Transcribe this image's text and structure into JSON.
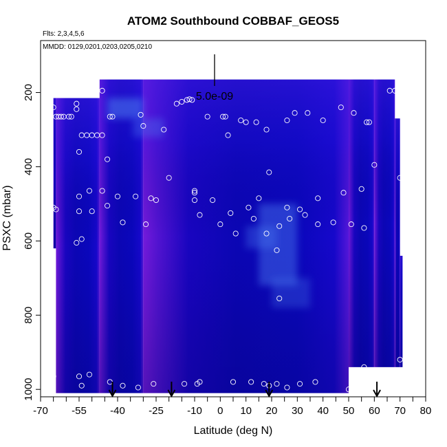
{
  "chart_data": {
    "type": "heatmap",
    "title": "ATOM2 Southbound COBBAF_GEOS5",
    "flights_note": "Flts: 2,3,4,5,6",
    "dates_note": "MMDD: 0129,0201,0203,0205,0210",
    "scale_label": "5.0e-09",
    "xlabel": "Latitude (deg N)",
    "ylabel": "PSXC (mbar)",
    "xlim": [
      -70,
      80
    ],
    "ylim": [
      1020,
      60
    ],
    "y_reversed": true,
    "x_tick_labels": [
      "-70",
      "-55",
      "-40",
      "-25",
      "-10",
      "0",
      "10",
      "20",
      "30",
      "40",
      "50",
      "60",
      "70",
      "80"
    ],
    "x_tick_values": [
      -70,
      -55,
      -40,
      -25,
      -10,
      0,
      10,
      20,
      30,
      40,
      50,
      60,
      70,
      80
    ],
    "x_minor_ticks": [
      -65,
      -60,
      -50,
      -45,
      -35,
      -30,
      -20,
      -15,
      -5,
      5,
      15,
      25,
      35,
      45,
      55,
      65,
      75
    ],
    "y_tick_labels": [
      "200",
      "400",
      "600",
      "800",
      "1000"
    ],
    "y_tick_values": [
      200,
      400,
      600,
      800,
      1000
    ],
    "colors": {
      "low": "#7a1ce0",
      "mid": "#1200c0",
      "high": "#4a7cf0",
      "marker": "#ffffff"
    },
    "columns": [
      {
        "x0": -65,
        "x1": -64,
        "top": 215,
        "bottom": 620
      },
      {
        "x0": -64,
        "x1": -47,
        "top": 215,
        "bottom": 1010
      },
      {
        "x0": -47,
        "x1": -30,
        "top": 165,
        "bottom": 1010
      },
      {
        "x0": -30,
        "x1": 50,
        "top": 165,
        "bottom": 1010
      },
      {
        "x0": 50,
        "x1": 60,
        "top": 165,
        "bottom": 940
      },
      {
        "x0": 60,
        "x1": 68,
        "top": 165,
        "bottom": 940
      },
      {
        "x0": 68,
        "x1": 70,
        "top": 270,
        "bottom": 940
      },
      {
        "x0": 70,
        "x1": 71,
        "top": 640,
        "bottom": 940
      }
    ],
    "highlights": [
      {
        "x0": -44,
        "x1": -30,
        "top": 215,
        "bottom": 270,
        "level": 0.55
      },
      {
        "x0": -34,
        "x1": -22,
        "top": 270,
        "bottom": 320,
        "level": 0.35
      },
      {
        "x0": 15,
        "x1": 30,
        "top": 500,
        "bottom": 720,
        "level": 0.45
      },
      {
        "x0": 10,
        "x1": 22,
        "top": 560,
        "bottom": 620,
        "level": 0.35
      },
      {
        "x0": 20,
        "x1": 35,
        "top": 700,
        "bottom": 780,
        "level": 0.3
      }
    ],
    "arrows_x": [
      -42,
      -19,
      19,
      61
    ],
    "points": [
      {
        "lat": -52,
        "p": 195
      },
      {
        "lat": -49,
        "p": 195
      },
      {
        "lat": -46,
        "p": 195
      },
      {
        "lat": -65,
        "p": 240
      },
      {
        "lat": -56,
        "p": 230
      },
      {
        "lat": -56,
        "p": 245
      },
      {
        "lat": -64,
        "p": 265
      },
      {
        "lat": -63,
        "p": 265
      },
      {
        "lat": -62,
        "p": 265
      },
      {
        "lat": -61,
        "p": 265
      },
      {
        "lat": -59,
        "p": 265
      },
      {
        "lat": -58,
        "p": 265
      },
      {
        "lat": -43,
        "p": 265
      },
      {
        "lat": -42,
        "p": 265
      },
      {
        "lat": -31,
        "p": 260
      },
      {
        "lat": -30,
        "p": 290
      },
      {
        "lat": -22,
        "p": 300
      },
      {
        "lat": -54,
        "p": 315
      },
      {
        "lat": -52,
        "p": 315
      },
      {
        "lat": -50,
        "p": 315
      },
      {
        "lat": -48,
        "p": 315
      },
      {
        "lat": -46,
        "p": 315
      },
      {
        "lat": -17,
        "p": 230
      },
      {
        "lat": -15,
        "p": 225
      },
      {
        "lat": -13,
        "p": 220
      },
      {
        "lat": -12,
        "p": 218
      },
      {
        "lat": -11,
        "p": 220
      },
      {
        "lat": -5,
        "p": 265
      },
      {
        "lat": 1,
        "p": 265
      },
      {
        "lat": 2,
        "p": 265
      },
      {
        "lat": 3,
        "p": 315
      },
      {
        "lat": 8,
        "p": 275
      },
      {
        "lat": 10,
        "p": 280
      },
      {
        "lat": 14,
        "p": 280
      },
      {
        "lat": 18,
        "p": 300
      },
      {
        "lat": 26,
        "p": 275
      },
      {
        "lat": 29,
        "p": 255
      },
      {
        "lat": 34,
        "p": 255
      },
      {
        "lat": 40,
        "p": 275
      },
      {
        "lat": 47,
        "p": 240
      },
      {
        "lat": 52,
        "p": 255
      },
      {
        "lat": 57,
        "p": 280
      },
      {
        "lat": 58,
        "p": 280
      },
      {
        "lat": 66,
        "p": 195
      },
      {
        "lat": 68,
        "p": 195
      },
      {
        "lat": -55,
        "p": 360
      },
      {
        "lat": -44,
        "p": 380
      },
      {
        "lat": -20,
        "p": 430
      },
      {
        "lat": 19,
        "p": 415
      },
      {
        "lat": 60,
        "p": 395
      },
      {
        "lat": 70,
        "p": 430
      },
      {
        "lat": -51,
        "p": 465
      },
      {
        "lat": -46,
        "p": 465
      },
      {
        "lat": -55,
        "p": 480
      },
      {
        "lat": -40,
        "p": 480
      },
      {
        "lat": -33,
        "p": 480
      },
      {
        "lat": -27,
        "p": 485
      },
      {
        "lat": -25,
        "p": 490
      },
      {
        "lat": -10,
        "p": 465
      },
      {
        "lat": -10,
        "p": 470
      },
      {
        "lat": -10,
        "p": 490
      },
      {
        "lat": -3,
        "p": 490
      },
      {
        "lat": 15,
        "p": 485
      },
      {
        "lat": 38,
        "p": 485
      },
      {
        "lat": 48,
        "p": 470
      },
      {
        "lat": 55,
        "p": 460
      },
      {
        "lat": -65,
        "p": 510
      },
      {
        "lat": -64,
        "p": 515
      },
      {
        "lat": -55,
        "p": 520
      },
      {
        "lat": -50,
        "p": 520
      },
      {
        "lat": -44,
        "p": 505
      },
      {
        "lat": -8,
        "p": 530
      },
      {
        "lat": 4,
        "p": 525
      },
      {
        "lat": 11,
        "p": 510
      },
      {
        "lat": 13,
        "p": 540
      },
      {
        "lat": 26,
        "p": 510
      },
      {
        "lat": 27,
        "p": 540
      },
      {
        "lat": 31,
        "p": 515
      },
      {
        "lat": 33,
        "p": 530
      },
      {
        "lat": -38,
        "p": 550
      },
      {
        "lat": -29,
        "p": 555
      },
      {
        "lat": 0,
        "p": 555
      },
      {
        "lat": 6,
        "p": 580
      },
      {
        "lat": 18,
        "p": 580
      },
      {
        "lat": 23,
        "p": 560
      },
      {
        "lat": 38,
        "p": 555
      },
      {
        "lat": 44,
        "p": 550
      },
      {
        "lat": 51,
        "p": 555
      },
      {
        "lat": 56,
        "p": 565
      },
      {
        "lat": -54,
        "p": 595
      },
      {
        "lat": -56,
        "p": 605
      },
      {
        "lat": 22,
        "p": 625
      },
      {
        "lat": 23,
        "p": 755
      },
      {
        "lat": 70,
        "p": 920
      },
      {
        "lat": 56,
        "p": 940
      },
      {
        "lat": -65,
        "p": 965
      },
      {
        "lat": -55,
        "p": 965
      },
      {
        "lat": -51,
        "p": 960
      },
      {
        "lat": -54,
        "p": 990
      },
      {
        "lat": -43,
        "p": 980
      },
      {
        "lat": -38,
        "p": 990
      },
      {
        "lat": -32,
        "p": 995
      },
      {
        "lat": -26,
        "p": 985
      },
      {
        "lat": -14,
        "p": 985
      },
      {
        "lat": -9,
        "p": 985
      },
      {
        "lat": -8,
        "p": 980
      },
      {
        "lat": 5,
        "p": 980
      },
      {
        "lat": 12,
        "p": 980
      },
      {
        "lat": 17,
        "p": 985
      },
      {
        "lat": 19,
        "p": 990
      },
      {
        "lat": 22,
        "p": 985
      },
      {
        "lat": 26,
        "p": 995
      },
      {
        "lat": 31,
        "p": 985
      },
      {
        "lat": 37,
        "p": 980
      },
      {
        "lat": 50,
        "p": 1000
      }
    ]
  }
}
